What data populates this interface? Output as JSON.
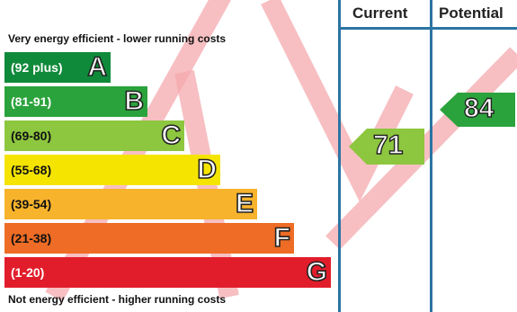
{
  "header": {
    "current_label": "Current",
    "potential_label": "Potential"
  },
  "top_caption": "Very energy efficient - lower running costs",
  "bottom_caption": "Not energy efficient - higher running costs",
  "bands": [
    {
      "range": "(92 plus)",
      "letter": "A",
      "color": "#0f8a3a",
      "range_color": "#ffffff"
    },
    {
      "range": "(81-91)",
      "letter": "B",
      "color": "#2ba33c",
      "range_color": "#ffffff"
    },
    {
      "range": "(69-80)",
      "letter": "C",
      "color": "#8dc63f",
      "range_color": "#111111"
    },
    {
      "range": "(55-68)",
      "letter": "D",
      "color": "#f5e400",
      "range_color": "#111111"
    },
    {
      "range": "(39-54)",
      "letter": "E",
      "color": "#f7b32b",
      "range_color": "#111111"
    },
    {
      "range": "(21-38)",
      "letter": "F",
      "color": "#ee6c25",
      "range_color": "#111111"
    },
    {
      "range": "(1-20)",
      "letter": "G",
      "color": "#e21d2b",
      "range_color": "#ffffff"
    }
  ],
  "current_rating": {
    "value": "71",
    "band": "C",
    "color": "#8dc63f"
  },
  "potential_rating": {
    "value": "84",
    "band": "B",
    "color": "#2ba33c"
  },
  "watermark_color": "#f4a9ad"
}
